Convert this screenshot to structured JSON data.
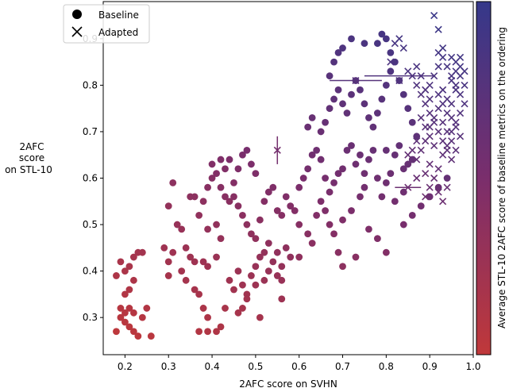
{
  "chart_data": {
    "type": "scatter",
    "xlabel": "2AFC score on SVHN",
    "ylabel_lines": [
      "2AFC",
      "score",
      "on STL-10"
    ],
    "xlim": [
      0.15,
      1.0
    ],
    "ylim": [
      0.22,
      0.98
    ],
    "xticks": [
      0.2,
      0.3,
      0.4,
      0.5,
      0.6,
      0.7,
      0.8,
      0.9,
      1.0
    ],
    "xtick_labels": [
      "0.2",
      "0.3",
      "0.4",
      "0.5",
      "0.6",
      "0.7",
      "0.8",
      "0.9",
      "1.0"
    ],
    "yticks": [
      0.3,
      0.4,
      0.5,
      0.6,
      0.7,
      0.8,
      0.9
    ],
    "ytick_labels": [
      "0.3",
      "0.4",
      "0.5",
      "0.6",
      "0.7",
      "0.8",
      "0.9"
    ],
    "legend": {
      "placement": "top-left",
      "entries": [
        {
          "label": "Baseline",
          "marker": "circle"
        },
        {
          "label": "Adapted",
          "marker": "x"
        }
      ]
    },
    "colorbar": {
      "label": "Average STL-10 2AFC score of baseline metrics on the ordering",
      "color_low": "#c0383a",
      "color_mid": "#7a2e6c",
      "color_high": "#35388a"
    },
    "series": [
      {
        "name": "Baseline",
        "marker": "circle",
        "points": [
          [
            0.18,
            0.39
          ],
          [
            0.19,
            0.42
          ],
          [
            0.2,
            0.4
          ],
          [
            0.21,
            0.41
          ],
          [
            0.22,
            0.43
          ],
          [
            0.23,
            0.44
          ],
          [
            0.24,
            0.44
          ],
          [
            0.22,
            0.38
          ],
          [
            0.21,
            0.36
          ],
          [
            0.2,
            0.35
          ],
          [
            0.18,
            0.27
          ],
          [
            0.19,
            0.3
          ],
          [
            0.2,
            0.31
          ],
          [
            0.21,
            0.32
          ],
          [
            0.22,
            0.31
          ],
          [
            0.2,
            0.29
          ],
          [
            0.21,
            0.28
          ],
          [
            0.22,
            0.27
          ],
          [
            0.23,
            0.26
          ],
          [
            0.24,
            0.3
          ],
          [
            0.26,
            0.26
          ],
          [
            0.25,
            0.32
          ],
          [
            0.19,
            0.32
          ],
          [
            0.29,
            0.45
          ],
          [
            0.3,
            0.42
          ],
          [
            0.3,
            0.39
          ],
          [
            0.31,
            0.44
          ],
          [
            0.33,
            0.4
          ],
          [
            0.35,
            0.43
          ],
          [
            0.36,
            0.42
          ],
          [
            0.34,
            0.38
          ],
          [
            0.38,
            0.42
          ],
          [
            0.39,
            0.41
          ],
          [
            0.41,
            0.43
          ],
          [
            0.3,
            0.54
          ],
          [
            0.31,
            0.59
          ],
          [
            0.32,
            0.5
          ],
          [
            0.33,
            0.49
          ],
          [
            0.35,
            0.56
          ],
          [
            0.36,
            0.56
          ],
          [
            0.34,
            0.45
          ],
          [
            0.36,
            0.36
          ],
          [
            0.37,
            0.35
          ],
          [
            0.38,
            0.32
          ],
          [
            0.39,
            0.3
          ],
          [
            0.37,
            0.27
          ],
          [
            0.39,
            0.27
          ],
          [
            0.41,
            0.27
          ],
          [
            0.42,
            0.28
          ],
          [
            0.43,
            0.32
          ],
          [
            0.37,
            0.52
          ],
          [
            0.38,
            0.55
          ],
          [
            0.39,
            0.58
          ],
          [
            0.4,
            0.6
          ],
          [
            0.4,
            0.63
          ],
          [
            0.41,
            0.61
          ],
          [
            0.42,
            0.58
          ],
          [
            0.43,
            0.56
          ],
          [
            0.44,
            0.55
          ],
          [
            0.45,
            0.59
          ],
          [
            0.46,
            0.62
          ],
          [
            0.47,
            0.65
          ],
          [
            0.48,
            0.66
          ],
          [
            0.49,
            0.63
          ],
          [
            0.5,
            0.61
          ],
          [
            0.42,
            0.64
          ],
          [
            0.43,
            0.62
          ],
          [
            0.44,
            0.64
          ],
          [
            0.45,
            0.56
          ],
          [
            0.46,
            0.54
          ],
          [
            0.41,
            0.5
          ],
          [
            0.42,
            0.47
          ],
          [
            0.39,
            0.49
          ],
          [
            0.44,
            0.38
          ],
          [
            0.45,
            0.36
          ],
          [
            0.46,
            0.4
          ],
          [
            0.47,
            0.37
          ],
          [
            0.48,
            0.35
          ],
          [
            0.49,
            0.39
          ],
          [
            0.5,
            0.41
          ],
          [
            0.51,
            0.43
          ],
          [
            0.52,
            0.44
          ],
          [
            0.53,
            0.46
          ],
          [
            0.54,
            0.42
          ],
          [
            0.55,
            0.44
          ],
          [
            0.56,
            0.41
          ],
          [
            0.57,
            0.45
          ],
          [
            0.58,
            0.43
          ],
          [
            0.53,
            0.4
          ],
          [
            0.52,
            0.38
          ],
          [
            0.55,
            0.39
          ],
          [
            0.56,
            0.38
          ],
          [
            0.5,
            0.37
          ],
          [
            0.48,
            0.34
          ],
          [
            0.47,
            0.32
          ],
          [
            0.46,
            0.31
          ],
          [
            0.51,
            0.3
          ],
          [
            0.56,
            0.34
          ],
          [
            0.47,
            0.52
          ],
          [
            0.48,
            0.5
          ],
          [
            0.49,
            0.48
          ],
          [
            0.5,
            0.47
          ],
          [
            0.51,
            0.51
          ],
          [
            0.52,
            0.55
          ],
          [
            0.53,
            0.57
          ],
          [
            0.54,
            0.58
          ],
          [
            0.55,
            0.53
          ],
          [
            0.56,
            0.52
          ],
          [
            0.57,
            0.56
          ],
          [
            0.58,
            0.54
          ],
          [
            0.59,
            0.53
          ],
          [
            0.6,
            0.5
          ],
          [
            0.62,
            0.48
          ],
          [
            0.63,
            0.46
          ],
          [
            0.64,
            0.52
          ],
          [
            0.6,
            0.43
          ],
          [
            0.65,
            0.55
          ],
          [
            0.66,
            0.53
          ],
          [
            0.67,
            0.5
          ],
          [
            0.68,
            0.48
          ],
          [
            0.69,
            0.44
          ],
          [
            0.7,
            0.41
          ],
          [
            0.6,
            0.58
          ],
          [
            0.61,
            0.6
          ],
          [
            0.62,
            0.62
          ],
          [
            0.63,
            0.65
          ],
          [
            0.64,
            0.66
          ],
          [
            0.65,
            0.64
          ],
          [
            0.66,
            0.6
          ],
          [
            0.67,
            0.57
          ],
          [
            0.68,
            0.59
          ],
          [
            0.69,
            0.61
          ],
          [
            0.7,
            0.62
          ],
          [
            0.71,
            0.66
          ],
          [
            0.72,
            0.67
          ],
          [
            0.73,
            0.63
          ],
          [
            0.74,
            0.65
          ],
          [
            0.75,
            0.61
          ],
          [
            0.76,
            0.64
          ],
          [
            0.77,
            0.66
          ],
          [
            0.78,
            0.6
          ],
          [
            0.79,
            0.56
          ],
          [
            0.8,
            0.59
          ],
          [
            0.81,
            0.61
          ],
          [
            0.82,
            0.65
          ],
          [
            0.83,
            0.67
          ],
          [
            0.84,
            0.62
          ],
          [
            0.85,
            0.63
          ],
          [
            0.86,
            0.64
          ],
          [
            0.8,
            0.66
          ],
          [
            0.62,
            0.71
          ],
          [
            0.63,
            0.73
          ],
          [
            0.65,
            0.7
          ],
          [
            0.66,
            0.72
          ],
          [
            0.67,
            0.75
          ],
          [
            0.68,
            0.77
          ],
          [
            0.69,
            0.79
          ],
          [
            0.7,
            0.76
          ],
          [
            0.71,
            0.74
          ],
          [
            0.72,
            0.78
          ],
          [
            0.73,
            0.81
          ],
          [
            0.74,
            0.79
          ],
          [
            0.75,
            0.76
          ],
          [
            0.76,
            0.73
          ],
          [
            0.77,
            0.71
          ],
          [
            0.78,
            0.74
          ],
          [
            0.79,
            0.77
          ],
          [
            0.8,
            0.8
          ],
          [
            0.81,
            0.83
          ],
          [
            0.82,
            0.85
          ],
          [
            0.83,
            0.81
          ],
          [
            0.84,
            0.78
          ],
          [
            0.85,
            0.75
          ],
          [
            0.86,
            0.72
          ],
          [
            0.87,
            0.69
          ],
          [
            0.67,
            0.82
          ],
          [
            0.68,
            0.85
          ],
          [
            0.69,
            0.87
          ],
          [
            0.72,
            0.9
          ],
          [
            0.75,
            0.89
          ],
          [
            0.78,
            0.89
          ],
          [
            0.79,
            0.91
          ],
          [
            0.8,
            0.9
          ],
          [
            0.81,
            0.87
          ],
          [
            0.7,
            0.88
          ],
          [
            0.7,
            0.51
          ],
          [
            0.72,
            0.53
          ],
          [
            0.74,
            0.56
          ],
          [
            0.75,
            0.58
          ],
          [
            0.76,
            0.49
          ],
          [
            0.78,
            0.47
          ],
          [
            0.8,
            0.44
          ],
          [
            0.82,
            0.55
          ],
          [
            0.84,
            0.57
          ],
          [
            0.86,
            0.52
          ],
          [
            0.88,
            0.54
          ],
          [
            0.9,
            0.56
          ],
          [
            0.92,
            0.58
          ],
          [
            0.94,
            0.6
          ],
          [
            0.73,
            0.43
          ],
          [
            0.84,
            0.5
          ]
        ]
      },
      {
        "name": "Adapted",
        "marker": "x",
        "points": [
          [
            0.55,
            0.66
          ],
          [
            0.73,
            0.81
          ],
          [
            0.83,
            0.81
          ],
          [
            0.85,
            0.58
          ],
          [
            0.81,
            0.85
          ],
          [
            0.82,
            0.89
          ],
          [
            0.83,
            0.9
          ],
          [
            0.84,
            0.88
          ],
          [
            0.85,
            0.83
          ],
          [
            0.86,
            0.82
          ],
          [
            0.87,
            0.8
          ],
          [
            0.88,
            0.78
          ],
          [
            0.89,
            0.76
          ],
          [
            0.9,
            0.74
          ],
          [
            0.91,
            0.72
          ],
          [
            0.92,
            0.7
          ],
          [
            0.93,
            0.68
          ],
          [
            0.94,
            0.66
          ],
          [
            0.95,
            0.64
          ],
          [
            0.89,
            0.71
          ],
          [
            0.9,
            0.69
          ],
          [
            0.91,
            0.67
          ],
          [
            0.88,
            0.73
          ],
          [
            0.87,
            0.68
          ],
          [
            0.86,
            0.66
          ],
          [
            0.85,
            0.65
          ],
          [
            0.87,
            0.64
          ],
          [
            0.89,
            0.61
          ],
          [
            0.9,
            0.63
          ],
          [
            0.91,
            0.6
          ],
          [
            0.92,
            0.62
          ],
          [
            0.93,
            0.65
          ],
          [
            0.94,
            0.67
          ],
          [
            0.95,
            0.7
          ],
          [
            0.96,
            0.72
          ],
          [
            0.97,
            0.74
          ],
          [
            0.98,
            0.76
          ],
          [
            0.9,
            0.58
          ],
          [
            0.92,
            0.57
          ],
          [
            0.94,
            0.58
          ],
          [
            0.93,
            0.55
          ],
          [
            0.89,
            0.56
          ],
          [
            0.87,
            0.6
          ],
          [
            0.9,
            0.8
          ],
          [
            0.91,
            0.82
          ],
          [
            0.92,
            0.84
          ],
          [
            0.93,
            0.86
          ],
          [
            0.94,
            0.84
          ],
          [
            0.95,
            0.82
          ],
          [
            0.96,
            0.8
          ],
          [
            0.97,
            0.78
          ],
          [
            0.92,
            0.78
          ],
          [
            0.93,
            0.76
          ],
          [
            0.94,
            0.74
          ],
          [
            0.95,
            0.76
          ],
          [
            0.91,
            0.95
          ],
          [
            0.92,
            0.92
          ],
          [
            0.93,
            0.88
          ],
          [
            0.92,
            0.87
          ],
          [
            0.95,
            0.86
          ],
          [
            0.96,
            0.85
          ],
          [
            0.97,
            0.84
          ],
          [
            0.98,
            0.83
          ],
          [
            0.96,
            0.83
          ],
          [
            0.97,
            0.86
          ],
          [
            0.95,
            0.81
          ],
          [
            0.96,
            0.79
          ],
          [
            0.98,
            0.8
          ],
          [
            0.97,
            0.82
          ],
          [
            0.88,
            0.66
          ],
          [
            0.89,
            0.68
          ],
          [
            0.9,
            0.71
          ],
          [
            0.91,
            0.73
          ],
          [
            0.92,
            0.75
          ],
          [
            0.93,
            0.72
          ],
          [
            0.94,
            0.7
          ],
          [
            0.95,
            0.68
          ],
          [
            0.96,
            0.71
          ],
          [
            0.97,
            0.69
          ],
          [
            0.96,
            0.66
          ],
          [
            0.95,
            0.73
          ],
          [
            0.94,
            0.77
          ],
          [
            0.93,
            0.79
          ],
          [
            0.9,
            0.77
          ],
          [
            0.89,
            0.79
          ],
          [
            0.88,
            0.82
          ],
          [
            0.87,
            0.84
          ]
        ]
      }
    ]
  }
}
